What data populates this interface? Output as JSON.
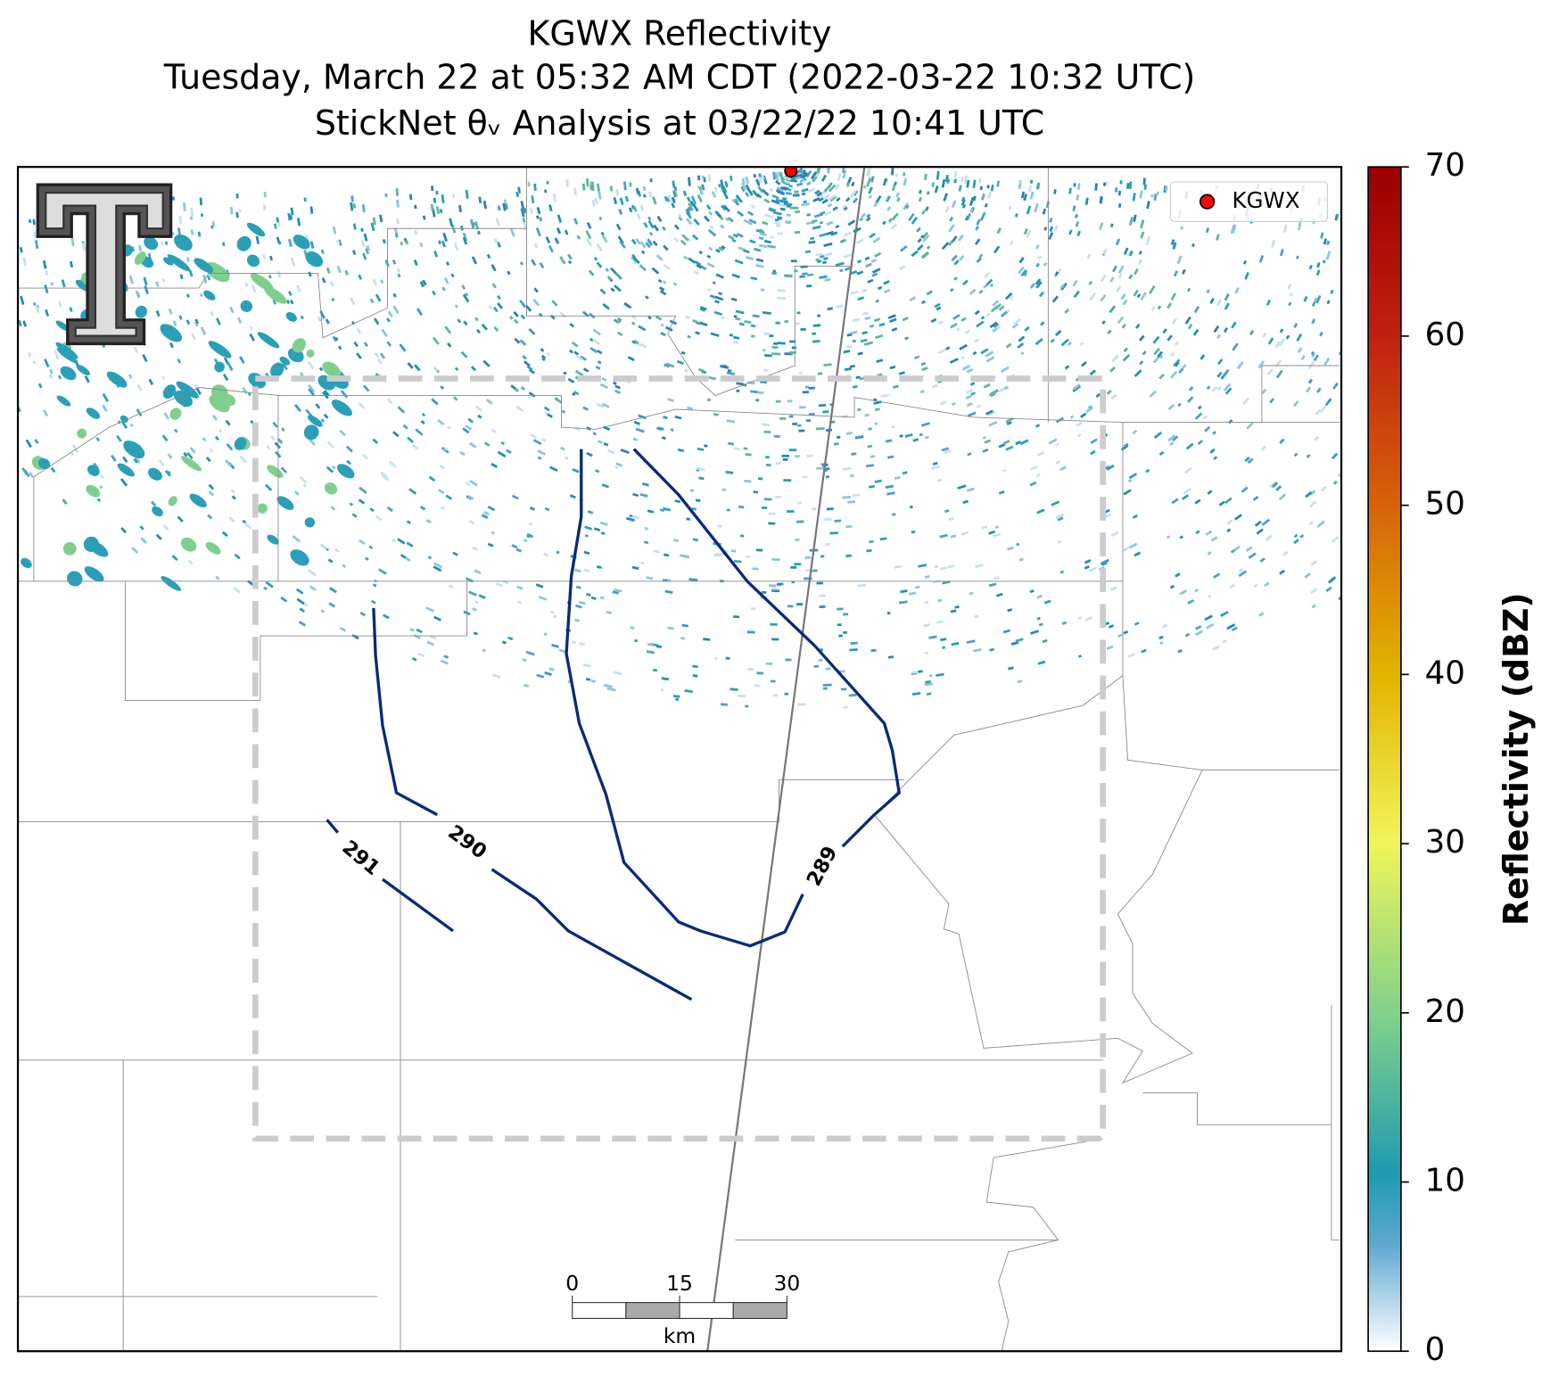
{
  "chart_data": {
    "type": "map",
    "title": "KGWX Reflectivity",
    "subtitle": "Tuesday, March 22 at 05:32 AM CDT (2022-03-22 10:32 UTC)",
    "analysis_title": "StickNet θᵥ Analysis at 03/22/22 10:41 UTC",
    "legend": [
      "KGWX"
    ],
    "radar_color": "#ff0000",
    "contour_color": "#0a2a78",
    "contours": [
      289,
      290,
      291
    ],
    "colorbar": {
      "label": "Reflectivity (dBZ)",
      "ylim": [
        0,
        70
      ],
      "yticks": [
        0,
        10,
        20,
        30,
        40,
        50,
        60,
        70
      ]
    },
    "scalebar": {
      "ticks": [
        0,
        15,
        30
      ],
      "unit": "km"
    }
  }
}
